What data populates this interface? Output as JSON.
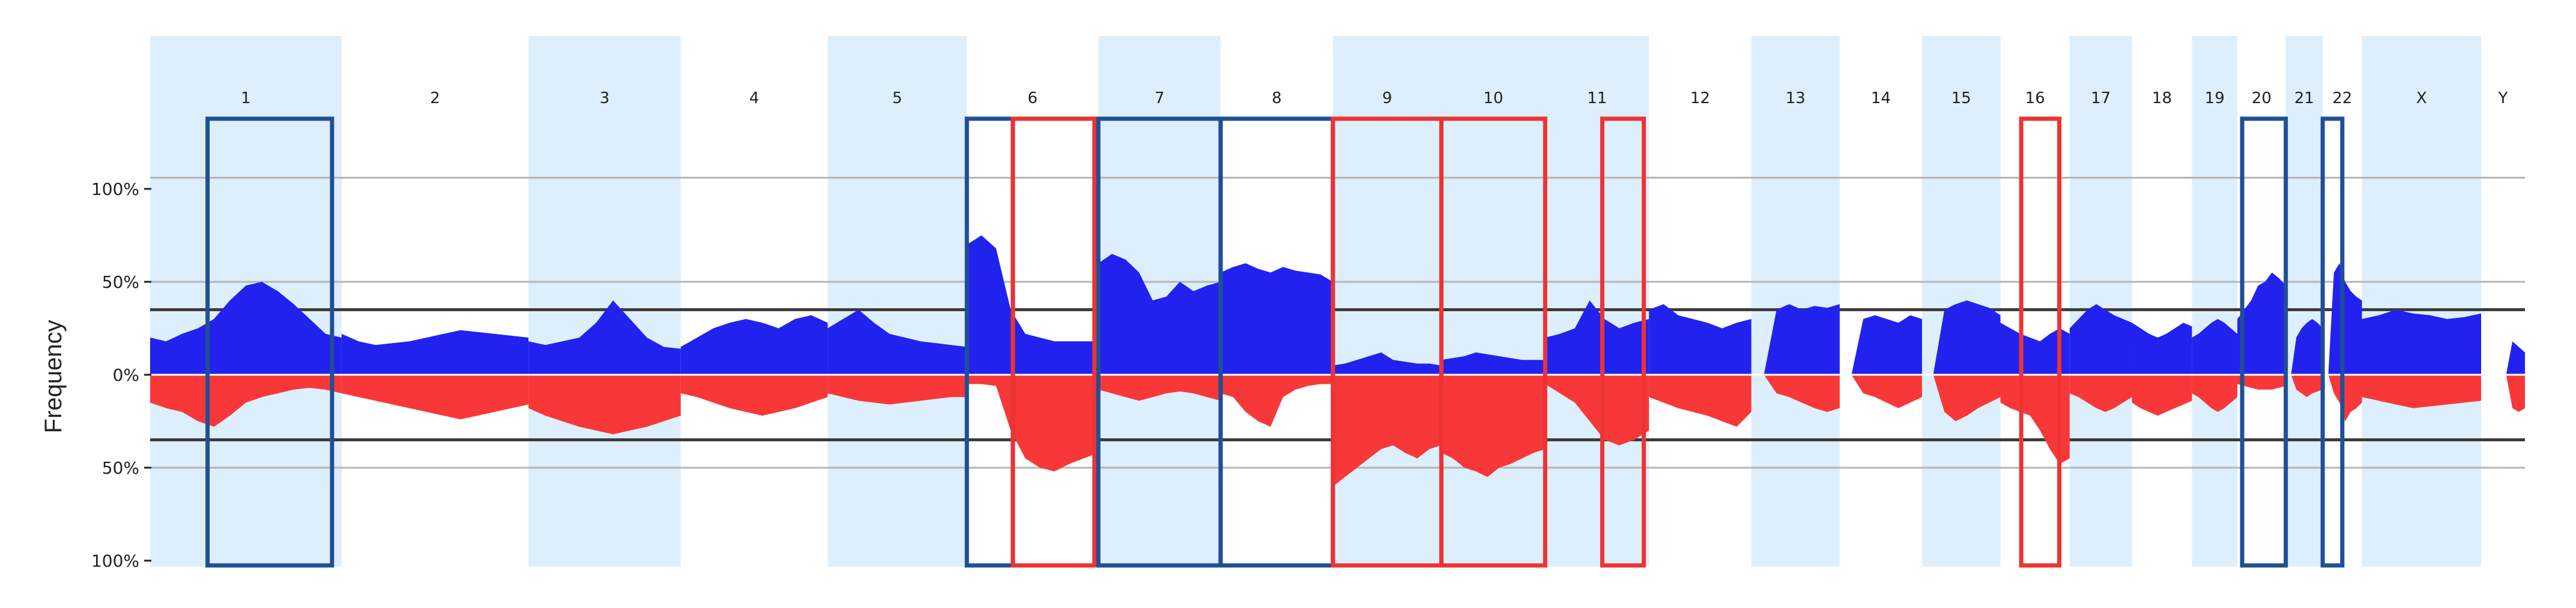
{
  "chart_data": {
    "type": "area",
    "title": "",
    "xlabel": "",
    "ylabel": "Frequency",
    "ylim": [
      -100,
      100
    ],
    "y_ticks": [
      {
        "value": 100,
        "label": "100%"
      },
      {
        "value": 50,
        "label": "50%"
      },
      {
        "value": 0,
        "label": "0%"
      },
      {
        "value": -50,
        "label": "50%"
      },
      {
        "value": -100,
        "label": "100%"
      }
    ],
    "reference_lines": [
      {
        "value": 35,
        "style": "dark"
      },
      {
        "value": -35,
        "style": "dark"
      },
      {
        "value": 50,
        "style": "light"
      },
      {
        "value": -50,
        "style": "light"
      },
      {
        "value": 106,
        "style": "light"
      }
    ],
    "colors": {
      "gain": "#2222EE",
      "loss": "#F83838",
      "band": "#DDEFFC",
      "box_blue": "#1F4F96",
      "box_red": "#EE3333",
      "dark_line": "#3C3C3C",
      "light_line": "#B4B4B4"
    },
    "chromosomes": [
      {
        "label": "1",
        "size": 249,
        "band": true,
        "gain": [
          20,
          18,
          22,
          25,
          30,
          40,
          48,
          50,
          45,
          38,
          30,
          22,
          20
        ],
        "loss": [
          -15,
          -18,
          -20,
          -25,
          -28,
          -22,
          -15,
          -12,
          -10,
          -8,
          -7,
          -8,
          -10
        ]
      },
      {
        "label": "2",
        "size": 243,
        "band": false,
        "gain": [
          22,
          18,
          16,
          17,
          18,
          20,
          22,
          24,
          23,
          22,
          21,
          20
        ],
        "loss": [
          -10,
          -12,
          -14,
          -16,
          -18,
          -20,
          -22,
          -24,
          -22,
          -20,
          -18,
          -16
        ]
      },
      {
        "label": "3",
        "size": 198,
        "band": true,
        "gain": [
          18,
          16,
          18,
          20,
          28,
          40,
          30,
          20,
          15,
          14
        ],
        "loss": [
          -18,
          -22,
          -25,
          -28,
          -30,
          -32,
          -30,
          -28,
          -25,
          -22
        ]
      },
      {
        "label": "4",
        "size": 191,
        "band": false,
        "gain": [
          15,
          20,
          25,
          28,
          30,
          28,
          25,
          30,
          32,
          28
        ],
        "loss": [
          -10,
          -12,
          -15,
          -18,
          -20,
          -22,
          -20,
          -18,
          -15,
          -12
        ]
      },
      {
        "label": "5",
        "size": 181,
        "band": true,
        "gain": [
          25,
          30,
          35,
          28,
          22,
          20,
          18,
          17,
          16,
          15
        ],
        "loss": [
          -10,
          -12,
          -14,
          -15,
          -16,
          -15,
          -14,
          -13,
          -12,
          -12
        ]
      },
      {
        "label": "6",
        "size": 171,
        "band": false,
        "gain": [
          70,
          75,
          68,
          35,
          22,
          20,
          18,
          18,
          18,
          18
        ],
        "loss": [
          -5,
          -5,
          -6,
          -30,
          -45,
          -50,
          -52,
          -48,
          -45,
          -42
        ]
      },
      {
        "label": "7",
        "size": 159,
        "band": true,
        "gain": [
          60,
          65,
          62,
          55,
          40,
          42,
          50,
          45,
          48,
          50
        ],
        "loss": [
          -8,
          -10,
          -12,
          -14,
          -12,
          -10,
          -9,
          -10,
          -12,
          -14
        ]
      },
      {
        "label": "8",
        "size": 146,
        "band": false,
        "gain": [
          55,
          58,
          60,
          57,
          55,
          58,
          56,
          55,
          54,
          50
        ],
        "loss": [
          -10,
          -12,
          -20,
          -25,
          -28,
          -12,
          -8,
          -6,
          -5,
          -5
        ]
      },
      {
        "label": "9",
        "size": 141,
        "band": true,
        "gain": [
          5,
          6,
          8,
          10,
          12,
          8,
          7,
          6,
          6,
          5
        ],
        "loss": [
          -60,
          -55,
          -50,
          -45,
          -40,
          -38,
          -42,
          -45,
          -40,
          -38
        ]
      },
      {
        "label": "10",
        "size": 135,
        "band": true,
        "gain": [
          8,
          9,
          10,
          12,
          11,
          10,
          9,
          8,
          8,
          8
        ],
        "loss": [
          -42,
          -45,
          -50,
          -52,
          -55,
          -50,
          -48,
          -45,
          -42,
          -40
        ]
      },
      {
        "label": "11",
        "size": 135,
        "band": true,
        "gain": [
          20,
          22,
          25,
          40,
          30,
          25,
          28,
          30
        ],
        "loss": [
          -5,
          -10,
          -15,
          -25,
          -35,
          -38,
          -35,
          -30
        ]
      },
      {
        "label": "12",
        "size": 133,
        "band": false,
        "gain": [
          35,
          38,
          32,
          30,
          28,
          25,
          28,
          30
        ],
        "loss": [
          -12,
          -15,
          -18,
          -20,
          -22,
          -25,
          -28,
          -20
        ]
      },
      {
        "label": "13",
        "size": 115,
        "band": true,
        "gain": [
          0,
          0,
          35,
          38,
          35,
          37,
          36,
          38
        ],
        "loss": [
          0,
          0,
          -10,
          -12,
          -15,
          -18,
          -20,
          -18
        ]
      },
      {
        "label": "14",
        "size": 107,
        "band": false,
        "gain": [
          0,
          0,
          30,
          32,
          30,
          28,
          32,
          30
        ],
        "loss": [
          0,
          0,
          -10,
          -12,
          -15,
          -18,
          -15,
          -12
        ]
      },
      {
        "label": "15",
        "size": 102,
        "band": true,
        "gain": [
          0,
          0,
          35,
          38,
          40,
          38,
          36,
          32
        ],
        "loss": [
          0,
          0,
          -20,
          -25,
          -22,
          -18,
          -15,
          -12
        ]
      },
      {
        "label": "16",
        "size": 90,
        "band": false,
        "gain": [
          28,
          25,
          22,
          20,
          18,
          22,
          25,
          22
        ],
        "loss": [
          -15,
          -18,
          -20,
          -22,
          -30,
          -40,
          -48,
          -45
        ]
      },
      {
        "label": "17",
        "size": 81,
        "band": true,
        "gain": [
          25,
          30,
          35,
          38,
          35,
          32,
          30,
          28
        ],
        "loss": [
          -10,
          -12,
          -15,
          -18,
          -20,
          -18,
          -15,
          -12
        ]
      },
      {
        "label": "18",
        "size": 78,
        "band": false,
        "gain": [
          28,
          25,
          22,
          20,
          22,
          25,
          28,
          26
        ],
        "loss": [
          -15,
          -18,
          -20,
          -22,
          -20,
          -18,
          -16,
          -14
        ]
      },
      {
        "label": "19",
        "size": 59,
        "band": true,
        "gain": [
          20,
          22,
          25,
          28,
          30,
          28,
          25,
          22
        ],
        "loss": [
          -10,
          -12,
          -15,
          -18,
          -20,
          -18,
          -15,
          -12
        ]
      },
      {
        "label": "20",
        "size": 63,
        "band": false,
        "gain": [
          30,
          35,
          40,
          48,
          50,
          55,
          52,
          48
        ],
        "loss": [
          -5,
          -6,
          -7,
          -8,
          -8,
          -8,
          -7,
          -6
        ]
      },
      {
        "label": "21",
        "size": 48,
        "band": true,
        "gain": [
          0,
          0,
          20,
          25,
          28,
          30,
          28,
          25
        ],
        "loss": [
          0,
          0,
          -8,
          -10,
          -12,
          -10,
          -9,
          -8
        ]
      },
      {
        "label": "22",
        "size": 51,
        "band": false,
        "gain": [
          0,
          0,
          55,
          60,
          50,
          45,
          42,
          40
        ],
        "loss": [
          0,
          0,
          -10,
          -15,
          -25,
          -20,
          -18,
          -15
        ]
      },
      {
        "label": "X",
        "size": 155,
        "band": true,
        "gain": [
          30,
          32,
          35,
          33,
          32,
          30,
          31,
          33
        ],
        "loss": [
          -12,
          -14,
          -16,
          -18,
          -17,
          -16,
          -15,
          -14
        ]
      },
      {
        "label": "Y",
        "size": 57,
        "band": false,
        "gain": [
          0,
          0,
          0,
          0,
          0,
          18,
          15,
          12
        ],
        "loss": [
          0,
          0,
          0,
          0,
          0,
          -18,
          -20,
          -18
        ]
      }
    ],
    "highlight_boxes": [
      {
        "chromosome": "1",
        "color": "blue",
        "from": 0.3,
        "to": 0.95,
        "extends_up": true
      },
      {
        "chromosome": "6",
        "color": "blue",
        "from": 0.0,
        "to": 0.35,
        "extends_up": true
      },
      {
        "chromosome": "6",
        "color": "red",
        "from": 0.35,
        "to": 0.97,
        "extends_up": true
      },
      {
        "chromosome": "7",
        "color": "blue",
        "from": 0.0,
        "to": 1.0,
        "extends_up": true
      },
      {
        "chromosome": "8",
        "color": "blue",
        "from": 0.0,
        "to": 1.0,
        "extends_up": true
      },
      {
        "chromosome": "9",
        "color": "red",
        "from": 0.0,
        "to": 1.0,
        "extends_up": true
      },
      {
        "chromosome": "10",
        "color": "red",
        "from": 0.0,
        "to": 1.0,
        "extends_up": true
      },
      {
        "chromosome": "11",
        "color": "red",
        "from": 0.55,
        "to": 0.95,
        "extends_up": true
      },
      {
        "chromosome": "16",
        "color": "red",
        "from": 0.3,
        "to": 0.85,
        "extends_up": true
      },
      {
        "chromosome": "20",
        "color": "blue",
        "from": 0.1,
        "to": 1.0,
        "extends_up": true
      },
      {
        "chromosome": "22",
        "color": "blue",
        "from": 0.0,
        "to": 0.5,
        "extends_up": true
      }
    ]
  }
}
